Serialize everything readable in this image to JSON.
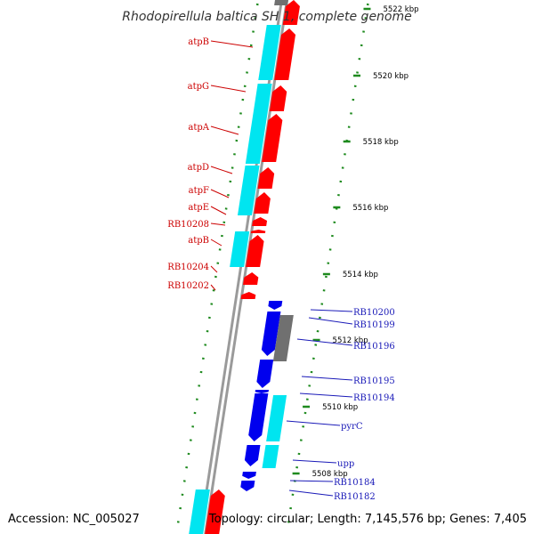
{
  "title": "Rhodopirellula baltica SH 1, complete genome",
  "accession": "Accession: NC_005027",
  "topology": "Topology: circular; Length: 7,145,576 bp; Genes: 7,405",
  "colors": {
    "cds_forward_red": "#ff0000",
    "cds_reverse_blue": "#0000ee",
    "feature_cyan": "#00e5f0",
    "feature_gray": "#707070",
    "backbone": "#9a9a9a",
    "ticks_green": "#1e8a1e",
    "label_red": "#cc0000",
    "label_blue": "#1a1ab8"
  },
  "scale_labels": [
    "5522 kbp",
    "5520 kbp",
    "5518 kbp",
    "5516 kbp",
    "5514 kbp",
    "5512 kbp",
    "5510 kbp",
    "5508 kbp"
  ],
  "left_labels": [
    "atpB",
    "atpG",
    "atpA",
    "atpD",
    "atpF",
    "atpE",
    "RB10208",
    "atpB",
    "RB10204",
    "RB10202"
  ],
  "right_labels": [
    "RB10200",
    "RB10199",
    "RB10196",
    "RB10195",
    "RB10194",
    "pyrC",
    "upp",
    "RB10184",
    "RB10182"
  ]
}
